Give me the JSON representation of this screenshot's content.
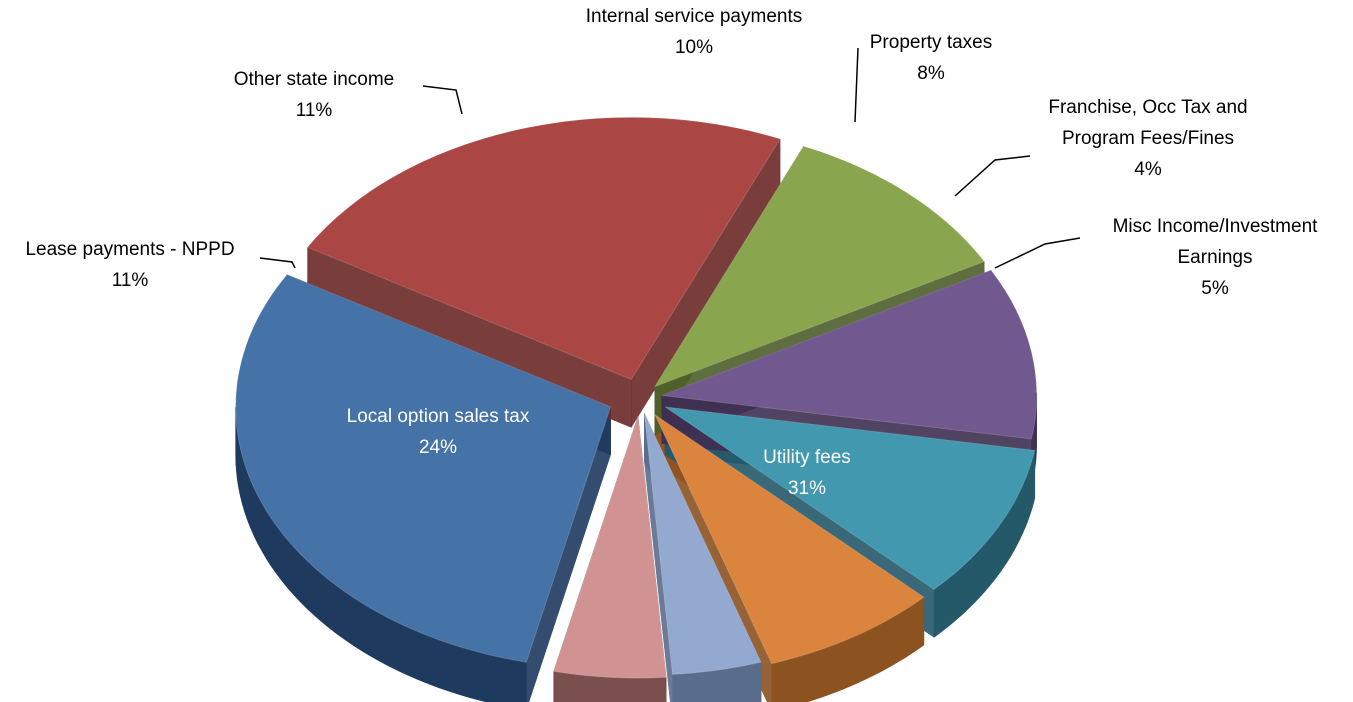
{
  "chart_data": {
    "type": "pie",
    "title": "",
    "style": "3d-exploded",
    "slices": [
      {
        "label": "Utility fees",
        "value": 31,
        "pct": "31%",
        "color": "#4572a7",
        "side": "#1f3a5f",
        "text_color": "#ffffff"
      },
      {
        "label": "Local option sales tax",
        "value": 24,
        "pct": "24%",
        "color": "#aa4643",
        "side": "#6b2a28",
        "text_color": "#ffffff"
      },
      {
        "label": "Lease payments - NPPD",
        "value": 11,
        "pct": "11%",
        "color": "#89a54e",
        "side": "#4e5f2a",
        "text_color": "#000000"
      },
      {
        "label": "Other state income",
        "value": 11,
        "pct": "11%",
        "color": "#71588f",
        "side": "#3f2f52",
        "text_color": "#000000"
      },
      {
        "label": "Internal service  payments",
        "value": 10,
        "pct": "10%",
        "color": "#4198af",
        "side": "#24596a",
        "text_color": "#000000"
      },
      {
        "label": "Property taxes",
        "value": 8,
        "pct": "8%",
        "color": "#db843d",
        "side": "#8c5220",
        "text_color": "#000000"
      },
      {
        "label_lines": [
          "Franchise, Occ Tax and",
          "Program Fees/Fines"
        ],
        "label": "Franchise, Occ Tax and Program Fees/Fines",
        "value": 4,
        "pct": "4%",
        "color": "#93a9cf",
        "side": "#5a6c8c",
        "text_color": "#000000"
      },
      {
        "label_lines": [
          "Misc Income/Investment",
          "Earnings"
        ],
        "label": "Misc Income/Investment Earnings",
        "value": 5,
        "pct": "5%",
        "color": "#d19392",
        "side": "#7a4f4e",
        "text_color": "#000000"
      }
    ]
  }
}
